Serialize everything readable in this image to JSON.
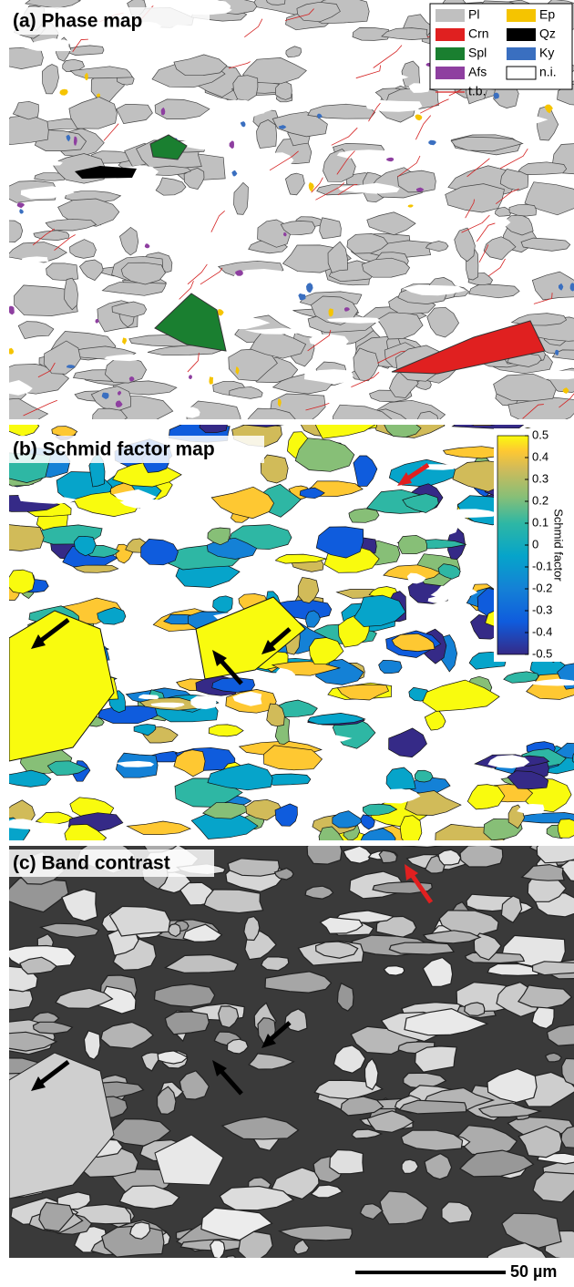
{
  "panels": [
    {
      "label": "(a) Phase map",
      "legend": [
        {
          "name": "Pl",
          "color": "#c0c0c0"
        },
        {
          "name": "Ep",
          "color": "#f5c400"
        },
        {
          "name": "Crn",
          "color": "#e02020"
        },
        {
          "name": "Qz",
          "color": "#000000"
        },
        {
          "name": "Spl",
          "color": "#1a7f30"
        },
        {
          "name": "Ky",
          "color": "#3a6fc0"
        },
        {
          "name": "Afs",
          "color": "#8e3fa0"
        },
        {
          "name": "n.i.",
          "color": "#ffffff"
        },
        {
          "name": "t.b.",
          "color": "#d42020"
        }
      ]
    },
    {
      "label": "(b) Schmid factor map",
      "colorbar": {
        "label": "Schmid factor",
        "lim": [
          -0.5,
          0.5
        ],
        "ticks": [
          0.5,
          0.4,
          0.3,
          0.2,
          0.1,
          0,
          -0.1,
          -0.2,
          -0.3,
          -0.4,
          -0.5
        ]
      }
    },
    {
      "label": "(c) Band contrast"
    }
  ],
  "scale_bar": "50 µm"
}
